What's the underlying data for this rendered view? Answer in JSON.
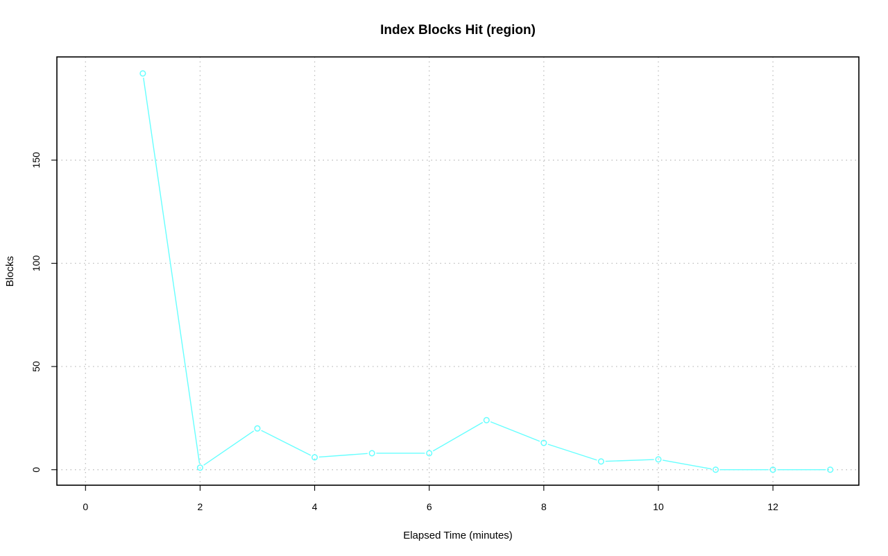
{
  "chart_data": {
    "type": "line",
    "title": "Index Blocks Hit (region)",
    "xlabel": "Elapsed Time (minutes)",
    "ylabel": "Blocks",
    "xlim": [
      -0.5,
      13.5
    ],
    "ylim": [
      -7.5,
      200
    ],
    "x_ticks": [
      0,
      2,
      4,
      6,
      8,
      10,
      12
    ],
    "y_ticks": [
      0,
      50,
      100,
      150
    ],
    "grid": true,
    "series": [
      {
        "color": "#66ffff",
        "marker": "circle",
        "x": [
          1,
          2,
          3,
          4,
          5,
          6,
          7,
          8,
          9,
          10,
          11,
          12,
          13
        ],
        "y": [
          192,
          1,
          20,
          6,
          8,
          8,
          24,
          13,
          4,
          5,
          0,
          0,
          0
        ]
      }
    ]
  }
}
